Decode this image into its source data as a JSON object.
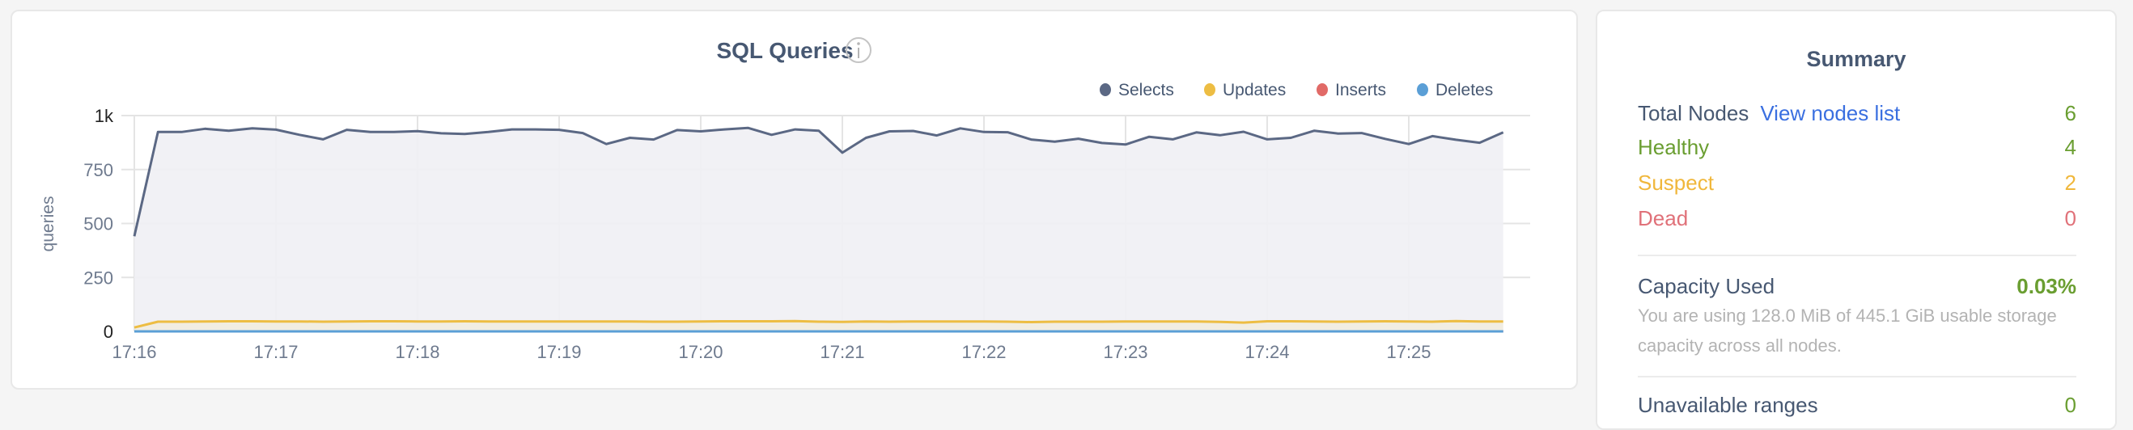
{
  "chart_card": {
    "title": "SQL Queries",
    "info_icon": "info-circle-icon"
  },
  "chart_data": {
    "type": "area",
    "title": "SQL Queries",
    "ylabel": "queries",
    "xlabel": "",
    "ylim": [
      0,
      1000
    ],
    "yticks": [
      {
        "value": 0,
        "label": "0"
      },
      {
        "value": 250,
        "label": "250"
      },
      {
        "value": 500,
        "label": "500"
      },
      {
        "value": 750,
        "label": "750"
      },
      {
        "value": 1000,
        "label": "1k"
      }
    ],
    "xticks": [
      "17:16",
      "17:17",
      "17:18",
      "17:19",
      "17:20",
      "17:21",
      "17:22",
      "17:23",
      "17:24",
      "17:25"
    ],
    "grid": true,
    "legend_placement": "top-right",
    "x": [
      "17:16:00",
      "17:16:10",
      "17:16:20",
      "17:16:30",
      "17:16:40",
      "17:16:50",
      "17:17:00",
      "17:17:10",
      "17:17:20",
      "17:17:30",
      "17:17:40",
      "17:17:50",
      "17:18:00",
      "17:18:10",
      "17:18:20",
      "17:18:30",
      "17:18:40",
      "17:18:50",
      "17:19:00",
      "17:19:10",
      "17:19:20",
      "17:19:30",
      "17:19:40",
      "17:19:50",
      "17:20:00",
      "17:20:10",
      "17:20:20",
      "17:20:30",
      "17:20:40",
      "17:20:50",
      "17:21:00",
      "17:21:10",
      "17:21:20",
      "17:21:30",
      "17:21:40",
      "17:21:50",
      "17:22:00",
      "17:22:10",
      "17:22:20",
      "17:22:30",
      "17:22:40",
      "17:22:50",
      "17:23:00",
      "17:23:10",
      "17:23:20",
      "17:23:30",
      "17:23:40",
      "17:23:50",
      "17:24:00",
      "17:24:10",
      "17:24:20",
      "17:24:30",
      "17:24:40",
      "17:24:50",
      "17:25:00",
      "17:25:10",
      "17:25:20",
      "17:25:30",
      "17:25:40"
    ],
    "series": [
      {
        "name": "Selects",
        "color": "#5b6884",
        "fill": "#eff0f4",
        "values": [
          441,
          924,
          924,
          939,
          930,
          941,
          935,
          911,
          890,
          934,
          924,
          924,
          928,
          918,
          915,
          924,
          936,
          936,
          934,
          919,
          868,
          897,
          889,
          933,
          927,
          936,
          943,
          911,
          936,
          930,
          828,
          897,
          927,
          929,
          908,
          941,
          924,
          923,
          889,
          879,
          893,
          873,
          866,
          902,
          890,
          922,
          909,
          925,
          890,
          897,
          930,
          917,
          919,
          892,
          868,
          905,
          888,
          874,
          922
        ]
      },
      {
        "name": "Updates",
        "color": "#edbd43",
        "fill": "#f1ece0",
        "values": [
          18,
          45,
          45,
          46,
          47,
          47,
          46,
          46,
          45,
          46,
          47,
          47,
          46,
          46,
          47,
          46,
          46,
          46,
          46,
          46,
          46,
          46,
          45,
          45,
          46,
          47,
          47,
          47,
          48,
          45,
          44,
          46,
          45,
          46,
          46,
          46,
          46,
          45,
          43,
          45,
          45,
          45,
          46,
          46,
          46,
          46,
          44,
          41,
          47,
          47,
          46,
          45,
          46,
          47,
          46,
          45,
          48,
          46,
          46
        ]
      },
      {
        "name": "Inserts",
        "color": "#e16a67",
        "fill": "#fbe9e8",
        "values": [
          0,
          0,
          0,
          0,
          0,
          0,
          0,
          0,
          0,
          0,
          0,
          0,
          0,
          0,
          0,
          0,
          0,
          0,
          0,
          0,
          0,
          0,
          0,
          0,
          0,
          0,
          0,
          0,
          0,
          0,
          0,
          0,
          0,
          0,
          0,
          0,
          0,
          0,
          0,
          0,
          0,
          0,
          0,
          0,
          0,
          0,
          0,
          0,
          0,
          0,
          0,
          0,
          0,
          0,
          0,
          0,
          0,
          0,
          0
        ]
      },
      {
        "name": "Deletes",
        "color": "#5b9fd6",
        "fill": "#e6f0f9",
        "values": [
          0,
          0,
          0,
          0,
          0,
          0,
          0,
          0,
          0,
          0,
          0,
          0,
          0,
          0,
          0,
          0,
          0,
          0,
          0,
          0,
          0,
          0,
          0,
          0,
          0,
          0,
          0,
          0,
          0,
          0,
          0,
          0,
          0,
          0,
          0,
          0,
          0,
          0,
          0,
          0,
          0,
          0,
          0,
          0,
          0,
          0,
          0,
          0,
          0,
          0,
          0,
          0,
          0,
          0,
          0,
          0,
          0,
          0,
          0
        ]
      }
    ]
  },
  "summary": {
    "title": "Summary",
    "total_nodes": {
      "label": "Total Nodes",
      "link": "View nodes list",
      "value": "6"
    },
    "healthy": {
      "label": "Healthy",
      "value": "4"
    },
    "suspect": {
      "label": "Suspect",
      "value": "2"
    },
    "dead": {
      "label": "Dead",
      "value": "0"
    },
    "capacity": {
      "label": "Capacity Used",
      "value": "0.03%",
      "description": "You are using 128.0 MiB of 445.1 GiB usable storage capacity across all nodes."
    },
    "unavailable": {
      "label": "Unavailable ranges",
      "value": "0"
    },
    "colors": {
      "heading": "#475872",
      "healthy": "#6a9e31",
      "suspect": "#f0b73b",
      "dead": "#e07179",
      "link": "#3a6fe0",
      "muted": "#b3b3b3"
    }
  }
}
